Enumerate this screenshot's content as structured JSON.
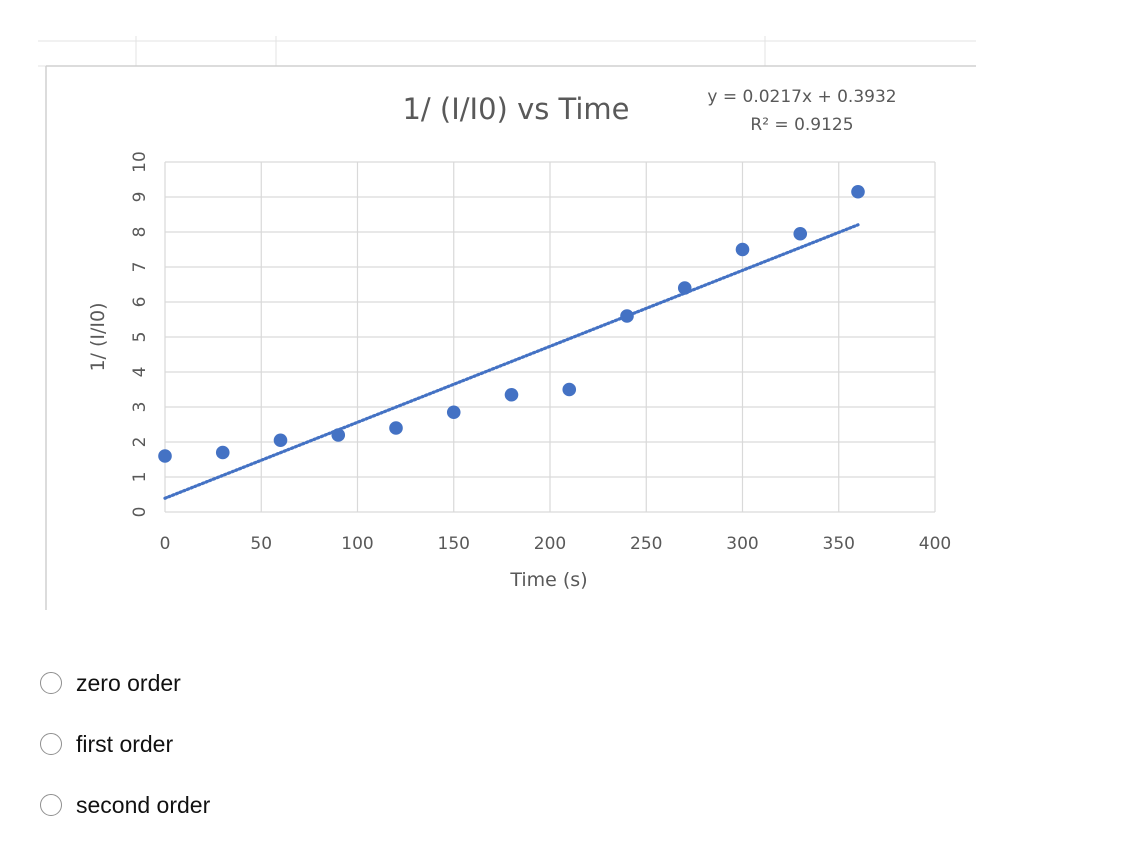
{
  "chart_data": {
    "type": "scatter",
    "title": "1/ (I/I0) vs Time",
    "xlabel": "Time (s)",
    "ylabel": "1/ (I/I0)",
    "xlim": [
      0,
      400
    ],
    "ylim": [
      0,
      10
    ],
    "xticks": [
      0,
      50,
      100,
      150,
      200,
      250,
      300,
      350,
      400
    ],
    "yticks": [
      0,
      1,
      2,
      3,
      4,
      5,
      6,
      7,
      8,
      9,
      10
    ],
    "grid": true,
    "point_color": "#4472c4",
    "series": [
      {
        "x": [
          0,
          30,
          60,
          90,
          120,
          150,
          180,
          210,
          240,
          270,
          300,
          330,
          360
        ],
        "y": [
          1.6,
          1.7,
          2.05,
          2.2,
          2.4,
          2.85,
          3.35,
          3.5,
          5.6,
          6.4,
          7.5,
          7.95,
          9.15
        ]
      }
    ],
    "trendline": {
      "type": "linear",
      "slope": 0.0217,
      "intercept": 0.3932,
      "x_range": [
        0,
        360
      ],
      "style": "dotted",
      "equation": "y = 0.0217x + 0.3932",
      "r_squared": "R² = 0.9125"
    }
  },
  "options": [
    {
      "label": "zero order"
    },
    {
      "label": "first order"
    },
    {
      "label": "second order"
    }
  ]
}
